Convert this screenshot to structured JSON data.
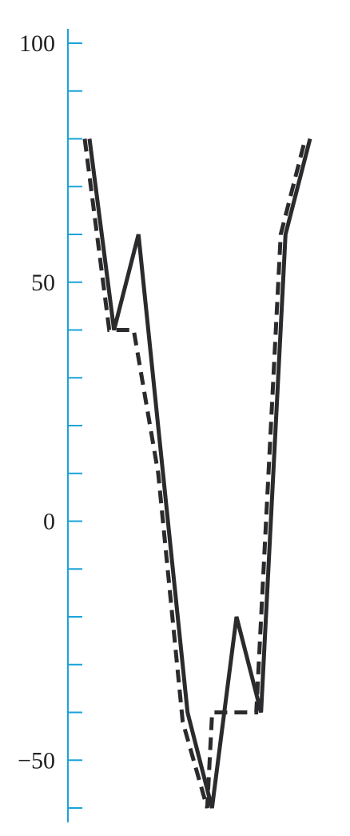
{
  "chart_data": {
    "type": "line",
    "title": "",
    "xlabel": "",
    "ylabel": "",
    "ylim": [
      -60,
      100
    ],
    "grid": false,
    "legend": "none",
    "axis_color": "#1aa3d9",
    "line_color": "#2b2b2e",
    "y_tick_values": [
      100,
      90,
      80,
      70,
      60,
      50,
      40,
      30,
      20,
      10,
      0,
      -10,
      -20,
      -30,
      -40,
      -50,
      -60
    ],
    "y_tick_labels": [
      "100",
      "50",
      "0",
      "−50"
    ],
    "y_label_values": [
      100,
      50,
      0,
      -50
    ],
    "series": [
      {
        "style": "solid",
        "x": [
          0,
          1,
          2,
          3,
          4,
          5,
          6,
          7,
          8,
          9
        ],
        "values": [
          80,
          40,
          60,
          10,
          -40,
          -60,
          -20,
          -40,
          60,
          80
        ]
      },
      {
        "style": "dashed",
        "x": [
          0,
          1,
          2,
          3,
          4,
          5,
          6,
          7,
          8,
          9
        ],
        "values": [
          80,
          40,
          40,
          10,
          -42,
          -60,
          -40,
          -40,
          60,
          80
        ],
        "steps": [
          [
            0,
            80
          ],
          [
            1,
            40
          ],
          [
            2,
            40
          ],
          [
            3,
            10
          ],
          [
            4,
            -42
          ],
          [
            5,
            -60
          ],
          [
            5.2,
            -40
          ],
          [
            7,
            -40
          ],
          [
            8,
            60
          ],
          [
            9,
            80
          ]
        ]
      }
    ]
  }
}
